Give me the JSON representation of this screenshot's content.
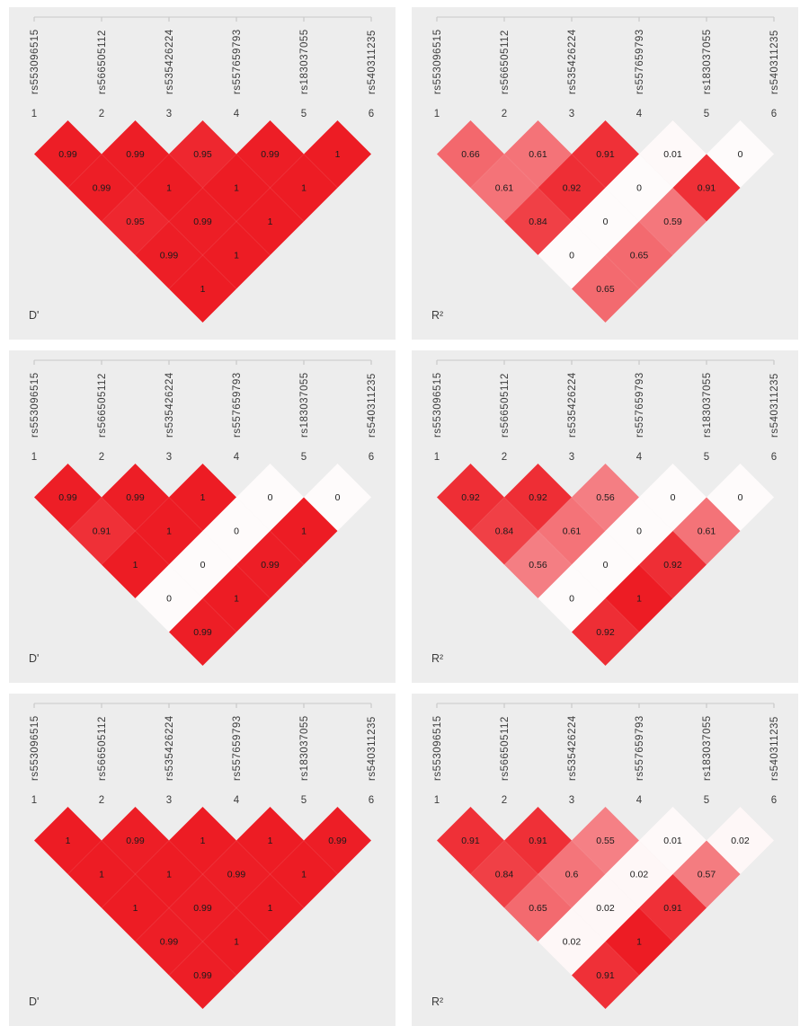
{
  "snps": [
    "rs553096515",
    "rs566505112",
    "rs535426224",
    "rs557659793",
    "rs183037055",
    "rs540311235"
  ],
  "index_labels": [
    "1",
    "2",
    "3",
    "4",
    "5",
    "6"
  ],
  "colors": {
    "cell_full": "#ED1C24",
    "cell_empty": "#FEFBFB",
    "panel_bg": "#EDEDED",
    "value_text": "#1B1B1B",
    "label_text": "#3C3C3C",
    "axis_line": "#C9C9C9"
  },
  "chart_data": [
    {
      "type": "heatmap",
      "metric": "D'",
      "grid_row": 1,
      "grid_col": 1,
      "note_rows_are_pair_distance": "rows[d-1][i] = LD value between SNP i+1 and SNP i+1+d",
      "rows": [
        [
          "0.99",
          "0.99",
          "0.95",
          "0.99",
          "1"
        ],
        [
          "0.99",
          "1",
          "1",
          "1"
        ],
        [
          "0.95",
          "0.99",
          "1"
        ],
        [
          "0.99",
          "1"
        ],
        [
          "1"
        ]
      ]
    },
    {
      "type": "heatmap",
      "metric": "R²",
      "grid_row": 1,
      "grid_col": 2,
      "rows": [
        [
          "0.66",
          "0.61",
          "0.91",
          "0.01",
          "0"
        ],
        [
          "0.61",
          "0.92",
          "0",
          "0.91"
        ],
        [
          "0.84",
          "0",
          "0.59"
        ],
        [
          "0",
          "0.65"
        ],
        [
          "0.65"
        ]
      ]
    },
    {
      "type": "heatmap",
      "metric": "D'",
      "grid_row": 2,
      "grid_col": 1,
      "rows": [
        [
          "0.99",
          "0.99",
          "1",
          "0",
          "0"
        ],
        [
          "0.91",
          "1",
          "0",
          "1"
        ],
        [
          "1",
          "0",
          "0.99"
        ],
        [
          "0",
          "1"
        ],
        [
          "0.99"
        ]
      ]
    },
    {
      "type": "heatmap",
      "metric": "R²",
      "grid_row": 2,
      "grid_col": 2,
      "rows": [
        [
          "0.92",
          "0.92",
          "0.56",
          "0",
          "0"
        ],
        [
          "0.84",
          "0.61",
          "0",
          "0.61"
        ],
        [
          "0.56",
          "0",
          "0.92"
        ],
        [
          "0",
          "1"
        ],
        [
          "0.92"
        ]
      ]
    },
    {
      "type": "heatmap",
      "metric": "D'",
      "grid_row": 3,
      "grid_col": 1,
      "rows": [
        [
          "1",
          "0.99",
          "1",
          "1",
          "0.99"
        ],
        [
          "1",
          "1",
          "0.99",
          "1"
        ],
        [
          "1",
          "0.99",
          "1"
        ],
        [
          "0.99",
          "1"
        ],
        [
          "0.99"
        ]
      ]
    },
    {
      "type": "heatmap",
      "metric": "R²",
      "grid_row": 3,
      "grid_col": 2,
      "rows": [
        [
          "0.91",
          "0.91",
          "0.55",
          "0.01",
          "0.02"
        ],
        [
          "0.84",
          "0.6",
          "0.02",
          "0.57"
        ],
        [
          "0.65",
          "0.02",
          "0.91"
        ],
        [
          "0.02",
          "1"
        ],
        [
          "0.91"
        ]
      ]
    }
  ]
}
